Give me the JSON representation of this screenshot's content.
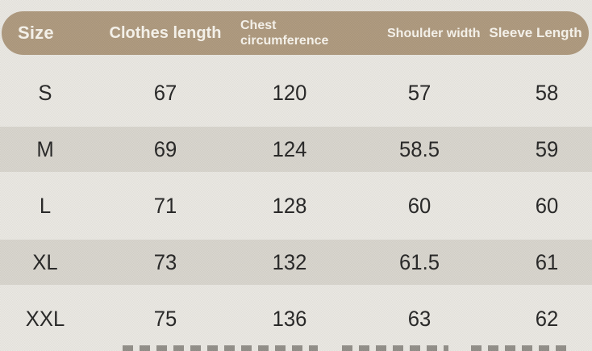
{
  "chart_data": {
    "type": "table",
    "title": "",
    "columns": [
      "Size",
      "Clothes length",
      "Chest circumference",
      "Shoulder width",
      "Sleeve Length"
    ],
    "rows": [
      [
        "S",
        "67",
        "120",
        "57",
        "58"
      ],
      [
        "M",
        "69",
        "124",
        "58.5",
        "59"
      ],
      [
        "L",
        "71",
        "128",
        "60",
        "60"
      ],
      [
        "XL",
        "73",
        "132",
        "61.5",
        "61"
      ],
      [
        "XXL",
        "75",
        "136",
        "63",
        "62"
      ]
    ]
  },
  "colors": {
    "page_bg": "#e9e7e1",
    "header_bg": "#ac977b",
    "header_text": "#f7f3ec",
    "row_stripe": "#d7d4cc",
    "cell_text": "#222222"
  }
}
